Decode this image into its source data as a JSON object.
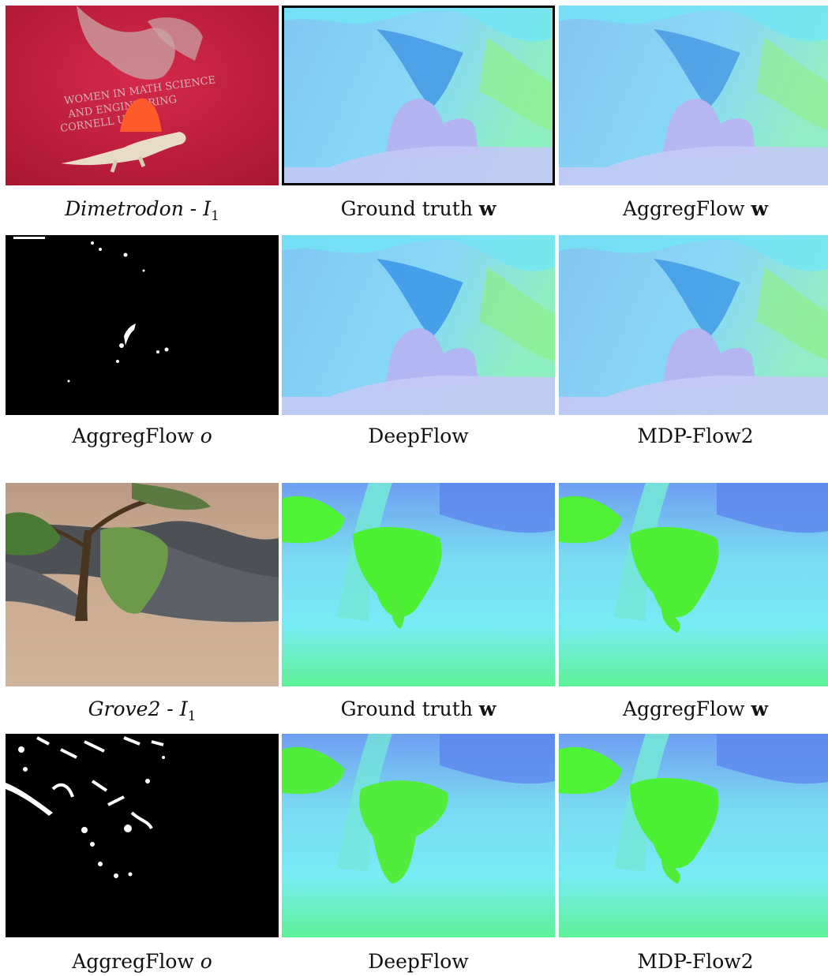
{
  "figure": {
    "sequences": [
      {
        "name": "Dimetrodon",
        "frame_label": "I",
        "frame_index": "1",
        "shirt_text": [
          "WOMEN IN MATH SCIENCE",
          "AND ENGINEERING",
          "CORNELL U"
        ],
        "row1_captions": {
          "gt_prefix": "Ground truth",
          "ours_prefix": "AggregFlow",
          "vector": "w"
        },
        "row2_captions": {
          "occ_prefix": "AggregFlow",
          "occ_var": "o",
          "method_a": "DeepFlow",
          "method_b": "MDP-Flow2"
        }
      },
      {
        "name": "Grove2",
        "frame_label": "I",
        "frame_index": "1",
        "row1_captions": {
          "gt_prefix": "Ground truth",
          "ours_prefix": "AggregFlow",
          "vector": "w"
        },
        "row2_captions": {
          "occ_prefix": "AggregFlow",
          "occ_var": "o",
          "method_a": "DeepFlow",
          "method_b": "MDP-Flow2"
        }
      }
    ]
  }
}
